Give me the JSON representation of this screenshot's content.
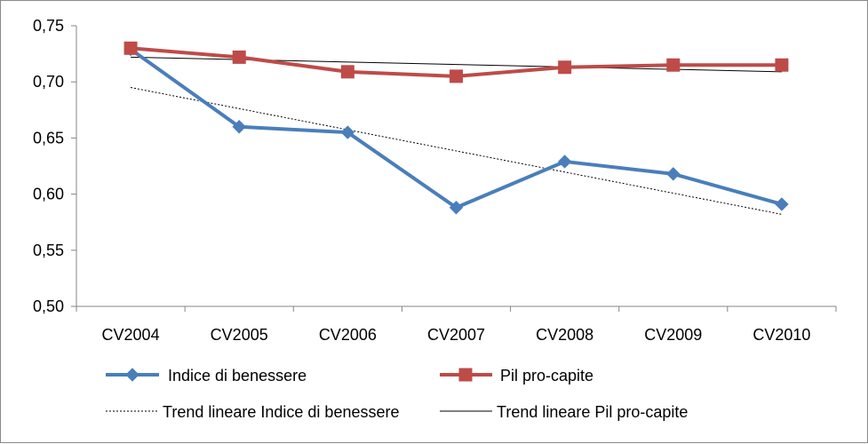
{
  "chart_data": {
    "type": "line",
    "categories": [
      "CV2004",
      "CV2005",
      "CV2006",
      "CV2007",
      "CV2008",
      "CV2009",
      "CV2010"
    ],
    "series": [
      {
        "name": "Indice di benessere",
        "values": [
          0.729,
          0.66,
          0.655,
          0.588,
          0.629,
          0.618,
          0.591
        ],
        "color": "#4a7ebb",
        "marker": "diamond"
      },
      {
        "name": "Pil pro-capite",
        "values": [
          0.73,
          0.722,
          0.709,
          0.705,
          0.713,
          0.715,
          0.715
        ],
        "color": "#be4b48",
        "marker": "square"
      }
    ],
    "trendlines": [
      {
        "name": "Trend lineare Indice di benessere",
        "start": 0.695,
        "end": 0.582,
        "style": "dotted",
        "color": "#000000"
      },
      {
        "name": "Trend lineare Pil pro-capite",
        "start": 0.722,
        "end": 0.709,
        "style": "solid",
        "color": "#000000"
      }
    ],
    "yticks": [
      "0,50",
      "0,55",
      "0,60",
      "0,65",
      "0,70",
      "0,75"
    ],
    "ylim": [
      0.5,
      0.75
    ],
    "grid": false,
    "legend_position": "bottom",
    "title": "",
    "xlabel": "",
    "ylabel": ""
  }
}
